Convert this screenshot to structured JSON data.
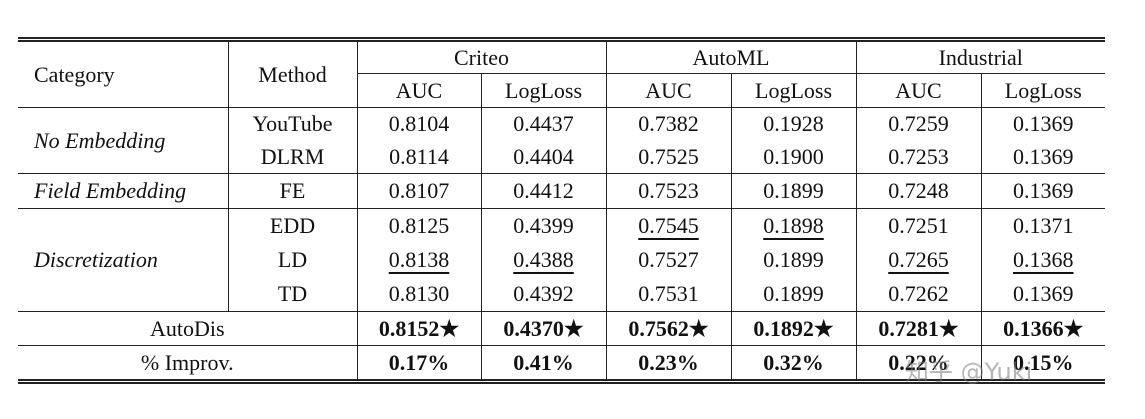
{
  "header": {
    "category": "Category",
    "method": "Method",
    "datasets": [
      {
        "name": "Criteo",
        "metrics": [
          "AUC",
          "LogLoss"
        ]
      },
      {
        "name": "AutoML",
        "metrics": [
          "AUC",
          "LogLoss"
        ]
      },
      {
        "name": "Industrial",
        "metrics": [
          "AUC",
          "LogLoss"
        ]
      }
    ]
  },
  "groups": [
    {
      "category": "No Embedding",
      "rows": [
        {
          "method": "YouTube",
          "values": [
            "0.8104",
            "0.4437",
            "0.7382",
            "0.1928",
            "0.7259",
            "0.1369"
          ],
          "underline": []
        },
        {
          "method": "DLRM",
          "values": [
            "0.8114",
            "0.4404",
            "0.7525",
            "0.1900",
            "0.7253",
            "0.1369"
          ],
          "underline": []
        }
      ]
    },
    {
      "category": "Field Embedding",
      "rows": [
        {
          "method": "FE",
          "values": [
            "0.8107",
            "0.4412",
            "0.7523",
            "0.1899",
            "0.7248",
            "0.1369"
          ],
          "underline": []
        }
      ]
    },
    {
      "category": "Discretization",
      "rows": [
        {
          "method": "EDD",
          "values": [
            "0.8125",
            "0.4399",
            "0.7545",
            "0.1898",
            "0.7251",
            "0.1371"
          ],
          "underline": [
            2,
            3
          ]
        },
        {
          "method": "LD",
          "values": [
            "0.8138",
            "0.4388",
            "0.7527",
            "0.1899",
            "0.7265",
            "0.1368"
          ],
          "underline": [
            0,
            1,
            4,
            5
          ]
        },
        {
          "method": "TD",
          "values": [
            "0.8130",
            "0.4392",
            "0.7531",
            "0.1899",
            "0.7262",
            "0.1369"
          ],
          "underline": []
        }
      ]
    }
  ],
  "autodis": {
    "method": "AutoDis",
    "values": [
      "0.8152★",
      "0.4370★",
      "0.7562★",
      "0.1892★",
      "0.7281★",
      "0.1366★"
    ]
  },
  "improvement": {
    "label": "% Improv.",
    "values": [
      "0.17%",
      "0.41%",
      "0.23%",
      "0.32%",
      "0.22%",
      "0.15%"
    ]
  },
  "watermark": "知乎 @Yuki"
}
